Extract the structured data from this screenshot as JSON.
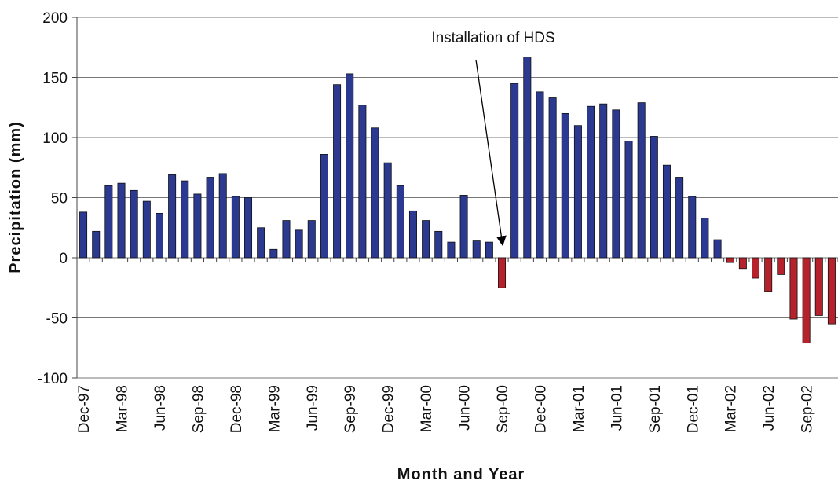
{
  "chart_data": {
    "type": "bar",
    "annotation": "Installation of HDS",
    "x_label": "Month and Year",
    "y_label": "Precipitation (mm)",
    "categories": [
      "Dec-97",
      null,
      null,
      "Mar-98",
      null,
      null,
      "Jun-98",
      null,
      null,
      "Sep-98",
      null,
      null,
      "Dec-98",
      null,
      null,
      "Mar-99",
      null,
      null,
      "Jun-99",
      null,
      null,
      "Sep-99",
      null,
      null,
      "Dec-99",
      null,
      null,
      "Mar-00",
      null,
      null,
      "Jun-00",
      null,
      null,
      "Sep-00",
      null,
      null,
      "Dec-00",
      null,
      null,
      "Mar-01",
      null,
      null,
      "Jun-01",
      null,
      null,
      "Sep-01",
      null,
      null,
      "Dec-01",
      null,
      null,
      "Mar-02",
      null,
      null,
      "Jun-02",
      null,
      null,
      "Sep-02",
      null,
      null
    ],
    "values": [
      38,
      22,
      60,
      62,
      56,
      47,
      37,
      69,
      64,
      53,
      67,
      70,
      51,
      50,
      25,
      7,
      31,
      23,
      31,
      86,
      144,
      153,
      127,
      108,
      79,
      60,
      39,
      31,
      22,
      13,
      52,
      14,
      13,
      -25,
      145,
      167,
      138,
      133,
      120,
      110,
      126,
      128,
      123,
      97,
      129,
      101,
      77,
      67,
      51,
      33,
      15,
      -4,
      -9,
      -17,
      -28,
      -14,
      -51,
      -71,
      -48,
      -55
    ],
    "positive_color": "#2b3990",
    "negative_color": "#b5222b",
    "ylim": [
      -100,
      200
    ],
    "yticks": [
      -100,
      -50,
      0,
      50,
      100,
      150,
      200
    ],
    "grid": true
  }
}
